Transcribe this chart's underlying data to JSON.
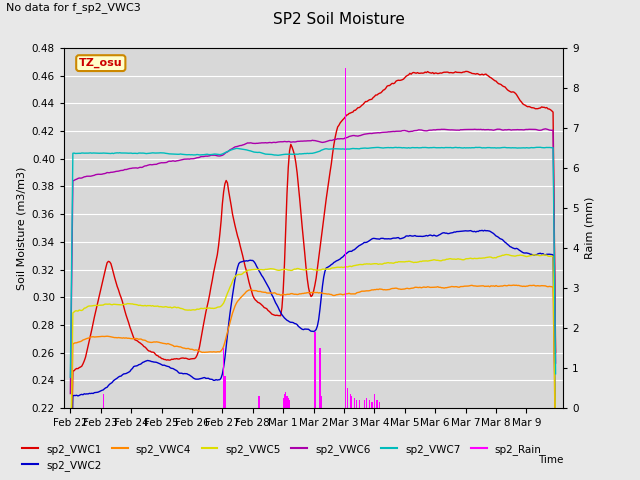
{
  "title": "SP2 Soil Moisture",
  "subtitle": "No data for f_sp2_VWC3",
  "xlabel": "Time",
  "ylabel_left": "Soil Moisture (m3/m3)",
  "ylabel_right": "Raim (mm)",
  "ylim_left": [
    0.22,
    0.48
  ],
  "ylim_right": [
    0.0,
    9.0
  ],
  "background_color": "#e8e8e8",
  "plot_bg_color": "#d8d8d8",
  "timezone_label": "TZ_osu",
  "colors": {
    "sp2_VWC1": "#dd0000",
    "sp2_VWC2": "#0000cc",
    "sp2_VWC4": "#ff8800",
    "sp2_VWC5": "#dddd00",
    "sp2_VWC6": "#aa00aa",
    "sp2_VWC7": "#00bbbb",
    "sp2_Rain": "#ff00ff"
  },
  "xtick_labels": [
    "Feb 22",
    "Feb 23",
    "Feb 24",
    "Feb 25",
    "Feb 26",
    "Feb 27",
    "Feb 28",
    "Mar 1",
    "Mar 2",
    "Mar 3",
    "Mar 4",
    "Mar 5",
    "Mar 6",
    "Mar 7",
    "Mar 8",
    "Mar 9"
  ],
  "legend_entries": [
    "sp2_VWC1",
    "sp2_VWC2",
    "sp2_VWC4",
    "sp2_VWC5",
    "sp2_VWC6",
    "sp2_VWC7",
    "sp2_Rain"
  ]
}
